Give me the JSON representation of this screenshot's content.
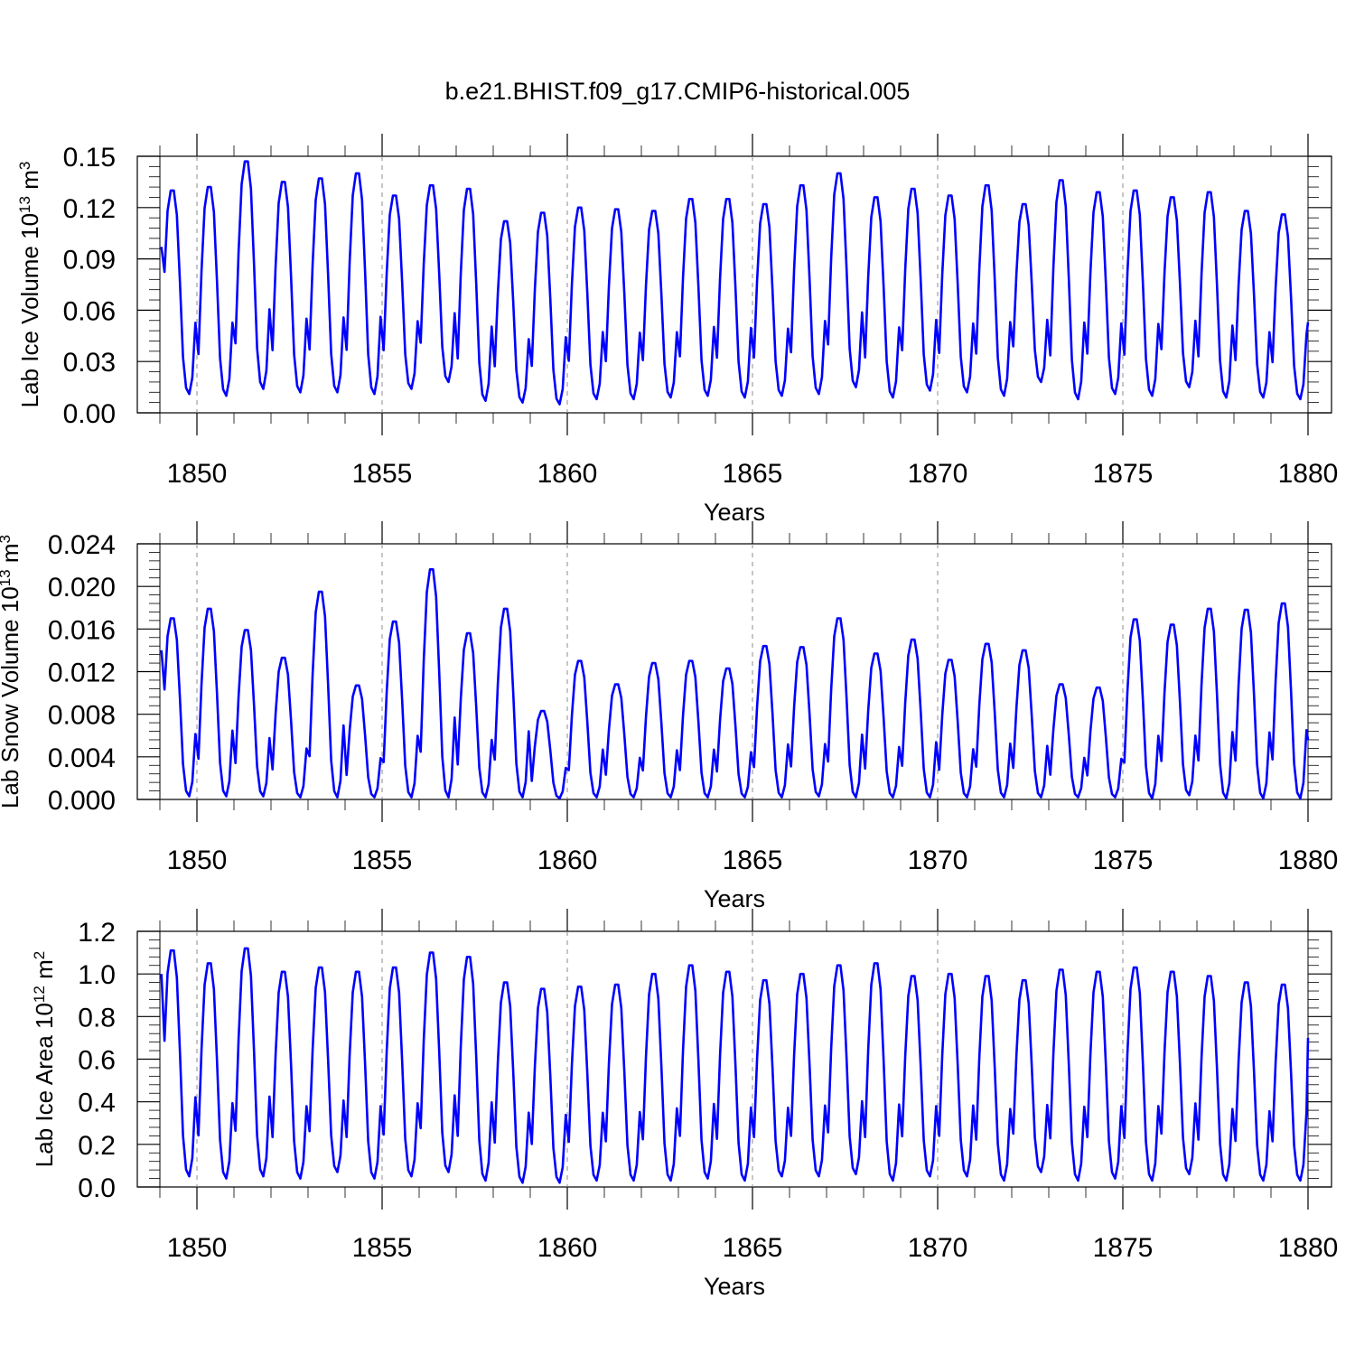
{
  "figure_title": "b.e21.BHIST.f09_g17.CMIP6-historical.005",
  "colors": {
    "series": "#0000ff",
    "axes": "#000000",
    "reference_lines": "#8c8c8c"
  },
  "chart_data": [
    {
      "type": "line",
      "title": "",
      "xlabel": "Years",
      "ylabel_parts": [
        "Lab Ice Volume 10",
        "13",
        " m",
        "3"
      ],
      "xlim": [
        1849,
        1880
      ],
      "ylim": [
        0,
        0.15
      ],
      "xticks": [
        "1850",
        "1855",
        "1860",
        "1865",
        "1870",
        "1875",
        "1880"
      ],
      "yticks": [
        "0.00",
        "0.03",
        "0.06",
        "0.09",
        "0.12",
        "0.15"
      ],
      "reference_lines_x": [
        1850,
        1855,
        1860,
        1865,
        1870,
        1875
      ],
      "peaks": [
        0.13,
        0.132,
        0.147,
        0.135,
        0.137,
        0.14,
        0.127,
        0.133,
        0.131,
        0.112,
        0.117,
        0.12,
        0.119,
        0.118,
        0.125,
        0.125,
        0.122,
        0.133,
        0.14,
        0.126,
        0.131,
        0.127,
        0.133,
        0.122,
        0.136,
        0.129,
        0.13,
        0.126,
        0.129,
        0.118,
        0.116
      ],
      "troughs": [
        0.011,
        0.01,
        0.014,
        0.012,
        0.012,
        0.011,
        0.014,
        0.018,
        0.007,
        0.006,
        0.005,
        0.008,
        0.008,
        0.009,
        0.01,
        0.009,
        0.01,
        0.011,
        0.015,
        0.009,
        0.013,
        0.012,
        0.01,
        0.018,
        0.008,
        0.011,
        0.01,
        0.015,
        0.009,
        0.009,
        0.008
      ],
      "start_value": 0.097,
      "end_value": 0.053
    },
    {
      "type": "line",
      "title": "",
      "xlabel": "Years",
      "ylabel_parts": [
        "Lab Snow Volume 10",
        "13",
        " m",
        "3"
      ],
      "xlim": [
        1849,
        1880
      ],
      "ylim": [
        0,
        0.024
      ],
      "xticks": [
        "1850",
        "1855",
        "1860",
        "1865",
        "1870",
        "1875",
        "1880"
      ],
      "yticks": [
        "0.000",
        "0.004",
        "0.008",
        "0.012",
        "0.016",
        "0.020",
        "0.024"
      ],
      "reference_lines_x": [
        1850,
        1855,
        1860,
        1865,
        1870,
        1875
      ],
      "peaks": [
        0.017,
        0.0179,
        0.0159,
        0.0133,
        0.0195,
        0.0107,
        0.0167,
        0.0216,
        0.0156,
        0.0179,
        0.0083,
        0.013,
        0.0108,
        0.0128,
        0.013,
        0.0123,
        0.0144,
        0.0143,
        0.017,
        0.0137,
        0.015,
        0.0131,
        0.0146,
        0.014,
        0.0108,
        0.0105,
        0.0169,
        0.0164,
        0.0179,
        0.0178,
        0.0184
      ],
      "troughs": [
        0.0003,
        0.0003,
        0.0003,
        0.0002,
        0.0002,
        0.0002,
        0.0002,
        0.0002,
        0.0002,
        0.0002,
        0.0001,
        0.0002,
        0.0002,
        0.0002,
        0.0002,
        0.0002,
        0.0002,
        0.0003,
        0.0002,
        0.0002,
        0.0002,
        0.0002,
        0.0002,
        0.0002,
        0.0002,
        0.0002,
        0.0001,
        0.0004,
        0.0001,
        0.0001,
        0.0001
      ],
      "start_value": 0.014,
      "end_value": 0.0056
    },
    {
      "type": "line",
      "title": "",
      "xlabel": "Years",
      "ylabel_parts": [
        "Lab Ice Area 10",
        "12",
        " m",
        "2"
      ],
      "xlim": [
        1849,
        1880
      ],
      "ylim": [
        0,
        1.2
      ],
      "xticks": [
        "1850",
        "1855",
        "1860",
        "1865",
        "1870",
        "1875",
        "1880"
      ],
      "yticks": [
        "0.0",
        "0.2",
        "0.4",
        "0.6",
        "0.8",
        "1.0",
        "1.2"
      ],
      "reference_lines_x": [
        1850,
        1855,
        1860,
        1865,
        1870,
        1875
      ],
      "peaks": [
        1.11,
        1.05,
        1.12,
        1.01,
        1.03,
        1.01,
        1.03,
        1.1,
        1.08,
        0.96,
        0.93,
        0.94,
        0.95,
        1.0,
        1.04,
        1.01,
        0.97,
        1.0,
        1.04,
        1.05,
        0.99,
        1.0,
        0.99,
        0.97,
        1.02,
        1.01,
        1.03,
        1.01,
        0.99,
        0.96,
        0.95
      ],
      "troughs": [
        0.05,
        0.04,
        0.05,
        0.04,
        0.07,
        0.04,
        0.05,
        0.07,
        0.03,
        0.02,
        0.02,
        0.03,
        0.03,
        0.03,
        0.04,
        0.03,
        0.05,
        0.05,
        0.06,
        0.03,
        0.05,
        0.05,
        0.03,
        0.07,
        0.03,
        0.04,
        0.03,
        0.06,
        0.03,
        0.03,
        0.03
      ],
      "start_value": 1.0,
      "end_value": 0.7
    }
  ]
}
